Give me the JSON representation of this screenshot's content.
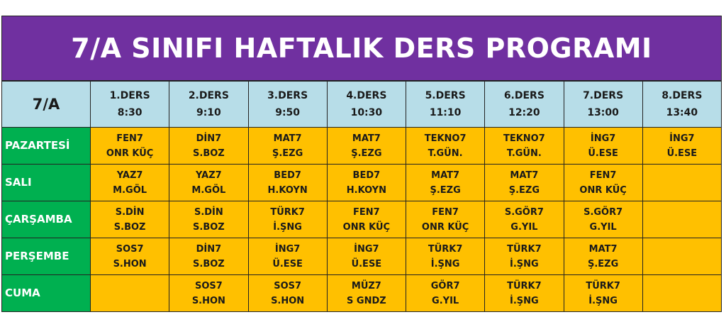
{
  "title": "7/A SINIFI HAFTALIK DERS PROGRAMI",
  "colors": {
    "title_bg": "#7030A0",
    "header_bg": "#B7DDE8",
    "day_bg": "#00B050",
    "cell_bg": "#FFC000"
  },
  "corner": "7/A",
  "periods": [
    {
      "label": "1.DERS",
      "time": "8:30"
    },
    {
      "label": "2.DERS",
      "time": "9:10"
    },
    {
      "label": "3.DERS",
      "time": "9:50"
    },
    {
      "label": "4.DERS",
      "time": "10:30"
    },
    {
      "label": "5.DERS",
      "time": "11:10"
    },
    {
      "label": "6.DERS",
      "time": "12:20"
    },
    {
      "label": "7.DERS",
      "time": "13:00"
    },
    {
      "label": "8.DERS",
      "time": "13:40"
    }
  ],
  "days": [
    {
      "name": "PAZARTESİ",
      "cells": [
        {
          "course": "FEN7",
          "teacher": "ONR KÜÇ"
        },
        {
          "course": "DİN7",
          "teacher": "S.BOZ"
        },
        {
          "course": "MAT7",
          "teacher": "Ş.EZG"
        },
        {
          "course": "MAT7",
          "teacher": "Ş.EZG"
        },
        {
          "course": "TEKNO7",
          "teacher": "T.GÜN."
        },
        {
          "course": "TEKNO7",
          "teacher": "T.GÜN."
        },
        {
          "course": "İNG7",
          "teacher": "Ü.ESE"
        },
        {
          "course": "İNG7",
          "teacher": "Ü.ESE"
        }
      ]
    },
    {
      "name": "SALI",
      "cells": [
        {
          "course": "YAZ7",
          "teacher": "M.GÖL"
        },
        {
          "course": "YAZ7",
          "teacher": "M.GÖL"
        },
        {
          "course": "BED7",
          "teacher": "H.KOYN"
        },
        {
          "course": "BED7",
          "teacher": "H.KOYN"
        },
        {
          "course": "MAT7",
          "teacher": "Ş.EZG"
        },
        {
          "course": "MAT7",
          "teacher": "Ş.EZG"
        },
        {
          "course": "FEN7",
          "teacher": "ONR KÜÇ"
        },
        {
          "course": "",
          "teacher": ""
        }
      ]
    },
    {
      "name": "ÇARŞAMBA",
      "cells": [
        {
          "course": "S.DİN",
          "teacher": "S.BOZ"
        },
        {
          "course": "S.DİN",
          "teacher": "S.BOZ"
        },
        {
          "course": "TÜRK7",
          "teacher": "İ.ŞNG"
        },
        {
          "course": "FEN7",
          "teacher": "ONR KÜÇ"
        },
        {
          "course": "FEN7",
          "teacher": "ONR KÜÇ"
        },
        {
          "course": "S.GÖR7",
          "teacher": "G.YIL"
        },
        {
          "course": "S.GÖR7",
          "teacher": "G.YIL"
        },
        {
          "course": "",
          "teacher": ""
        }
      ]
    },
    {
      "name": "PERŞEMBE",
      "cells": [
        {
          "course": "SOS7",
          "teacher": "S.HON"
        },
        {
          "course": "DİN7",
          "teacher": "S.BOZ"
        },
        {
          "course": "İNG7",
          "teacher": "Ü.ESE"
        },
        {
          "course": "İNG7",
          "teacher": "Ü.ESE"
        },
        {
          "course": "TÜRK7",
          "teacher": "İ.ŞNG"
        },
        {
          "course": "TÜRK7",
          "teacher": "İ.ŞNG"
        },
        {
          "course": "MAT7",
          "teacher": "Ş.EZG"
        },
        {
          "course": "",
          "teacher": ""
        }
      ]
    },
    {
      "name": "CUMA",
      "cells": [
        {
          "course": "",
          "teacher": ""
        },
        {
          "course": "SOS7",
          "teacher": "S.HON"
        },
        {
          "course": "SOS7",
          "teacher": "S.HON"
        },
        {
          "course": "MÜZ7",
          "teacher": "S GNDZ"
        },
        {
          "course": "GÖR7",
          "teacher": "G.YIL"
        },
        {
          "course": "TÜRK7",
          "teacher": "İ.ŞNG"
        },
        {
          "course": "TÜRK7",
          "teacher": "İ.ŞNG"
        },
        {
          "course": "",
          "teacher": ""
        }
      ]
    }
  ]
}
